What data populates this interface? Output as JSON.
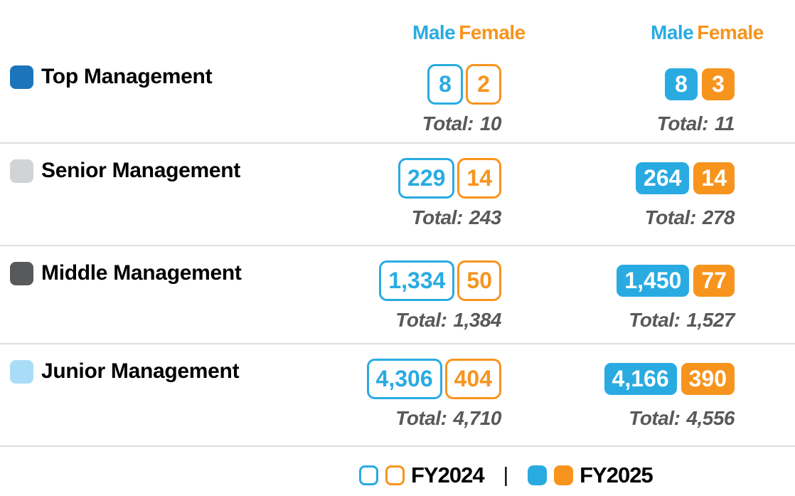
{
  "header": {
    "male": "Male",
    "female": "Female"
  },
  "total_label": "Total:",
  "colors": {
    "male_blue": "#29ABE2",
    "female_orange": "#F7941E",
    "top_management_icon": "#1B75BC",
    "senior_management_icon": "#D1D3D4",
    "middle_management_icon": "#58595B",
    "junior_management_icon": "#A9DDF7",
    "total_text": "#58595B",
    "divider": "#DDDEDF"
  },
  "rows": [
    {
      "label": "Top Management",
      "icon_color": "#1B75BC",
      "fy2024": {
        "male": "8",
        "female": "2",
        "total": "10"
      },
      "fy2025": {
        "male": "8",
        "female": "3",
        "total": "11"
      }
    },
    {
      "label": "Senior Management",
      "icon_color": "#D1D3D4",
      "fy2024": {
        "male": "229",
        "female": "14",
        "total": "243"
      },
      "fy2025": {
        "male": "264",
        "female": "14",
        "total": "278"
      }
    },
    {
      "label": "Middle Management",
      "icon_color": "#58595B",
      "fy2024": {
        "male": "1,334",
        "female": "50",
        "total": "1,384"
      },
      "fy2025": {
        "male": "1,450",
        "female": "77",
        "total": "1,527"
      }
    },
    {
      "label": "Junior Management",
      "icon_color": "#A9DDF7",
      "fy2024": {
        "male": "4,306",
        "female": "404",
        "total": "4,710"
      },
      "fy2025": {
        "male": "4,166",
        "female": "390",
        "total": "4,556"
      }
    }
  ],
  "legend": {
    "fy2024_label": "FY2024",
    "separator": "|",
    "fy2025_label": "FY2025"
  },
  "chart_data": {
    "type": "table",
    "title": "Management headcount by gender, FY2024 vs FY2025",
    "categories": [
      "Top Management",
      "Senior Management",
      "Middle Management",
      "Junior Management"
    ],
    "series": [
      {
        "name": "FY2024 Male",
        "values": [
          8,
          229,
          1334,
          4306
        ]
      },
      {
        "name": "FY2024 Female",
        "values": [
          2,
          14,
          50,
          404
        ]
      },
      {
        "name": "FY2024 Total",
        "values": [
          10,
          243,
          1384,
          4710
        ]
      },
      {
        "name": "FY2025 Male",
        "values": [
          8,
          264,
          1450,
          4166
        ]
      },
      {
        "name": "FY2025 Female",
        "values": [
          3,
          14,
          77,
          390
        ]
      },
      {
        "name": "FY2025 Total",
        "values": [
          11,
          278,
          1527,
          4556
        ]
      }
    ],
    "legend": [
      "FY2024",
      "FY2025"
    ],
    "legend_position": "bottom"
  }
}
